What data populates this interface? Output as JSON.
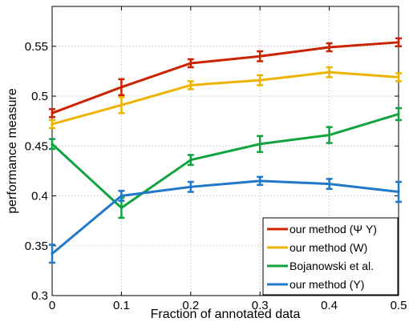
{
  "chart_data": {
    "type": "line",
    "title": "",
    "xlabel": "Fraction of annotated data",
    "ylabel": "performance measure",
    "xlim": [
      0,
      0.5
    ],
    "ylim": [
      0.3,
      0.59
    ],
    "x_ticks": [
      0,
      0.1,
      0.2,
      0.3,
      0.4,
      0.5
    ],
    "x_tick_labels": [
      "0",
      "0.1",
      "0.2",
      "0.3",
      "0.4",
      "0.5"
    ],
    "y_ticks": [
      0.3,
      0.35,
      0.4,
      0.45,
      0.5,
      0.55
    ],
    "y_tick_labels": [
      "0.3",
      "0.35",
      "0.4",
      "0.45",
      "0.5",
      "0.55"
    ],
    "grid": true,
    "legend_position": "bottom-right",
    "x": [
      0,
      0.1,
      0.2,
      0.3,
      0.4,
      0.5
    ],
    "series": [
      {
        "name": "our method (Ψ Y)",
        "color": "#cc2200",
        "values": [
          0.483,
          0.509,
          0.533,
          0.54,
          0.549,
          0.554
        ],
        "errors": [
          0.004,
          0.008,
          0.004,
          0.005,
          0.004,
          0.004
        ]
      },
      {
        "name": "our method (W)",
        "color": "#eeb300",
        "values": [
          0.472,
          0.491,
          0.511,
          0.516,
          0.524,
          0.519
        ],
        "errors": [
          0.004,
          0.008,
          0.004,
          0.005,
          0.005,
          0.004
        ]
      },
      {
        "name": "Bojanowski et al.",
        "color": "#11a33f",
        "values": [
          0.452,
          0.388,
          0.436,
          0.452,
          0.461,
          0.482
        ],
        "errors": [
          0.005,
          0.01,
          0.005,
          0.008,
          0.008,
          0.006
        ]
      },
      {
        "name": "our method (Y)",
        "color": "#1f78c8",
        "values": [
          0.342,
          0.4,
          0.409,
          0.415,
          0.412,
          0.404
        ],
        "errors": [
          0.009,
          0.005,
          0.005,
          0.004,
          0.005,
          0.01
        ]
      }
    ]
  }
}
